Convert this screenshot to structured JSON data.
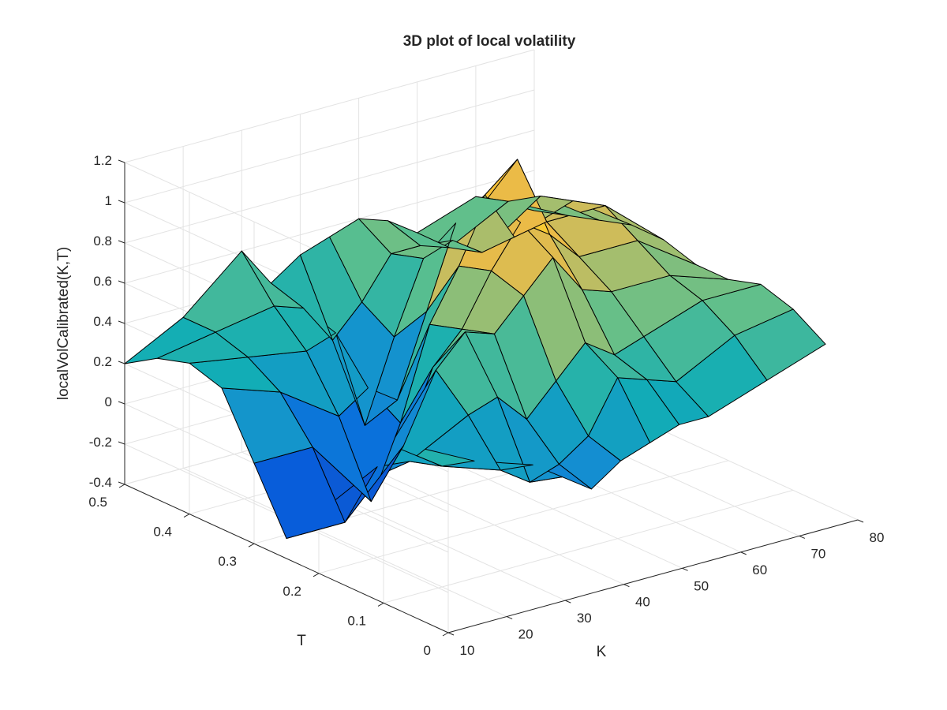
{
  "chart_data": {
    "type": "surface",
    "title": "3D plot of local volatility",
    "xlabel": "K",
    "ylabel": "T",
    "zlabel": "localVolCalibrated(K,T)",
    "xlim": [
      10,
      80
    ],
    "ylim": [
      0,
      0.5
    ],
    "zlim": [
      -0.4,
      1.2
    ],
    "x_ticks": [
      "10",
      "20",
      "30",
      "40",
      "50",
      "60",
      "70",
      "80"
    ],
    "y_ticks": [
      "0",
      "0.1",
      "0.2",
      "0.3",
      "0.4",
      "0.5"
    ],
    "z_ticks": [
      "-0.4",
      "-0.2",
      "0",
      "0.2",
      "0.4",
      "0.6",
      "0.8",
      "1",
      "1.2"
    ],
    "grid": true,
    "colormap": "parula",
    "K": [
      10,
      20,
      30,
      35,
      40,
      45,
      50,
      55,
      60,
      70,
      80
    ],
    "T": [
      0.05,
      0.1,
      0.15,
      0.2,
      0.25,
      0.3,
      0.35,
      0.4,
      0.45,
      0.5
    ],
    "Z": [
      [
        0.45,
        0.4,
        0.1,
        -0.1,
        -0.3,
        0.0,
        0.3,
        0.35,
        0.3,
        0.2
      ],
      [
        0.3,
        0.2,
        0.15,
        0.05,
        -0.3,
        0.0,
        0.2,
        0.3,
        0.35,
        0.35
      ],
      [
        0.2,
        0.1,
        0.3,
        0.45,
        0.0,
        -0.35,
        0.0,
        0.25,
        0.4,
        0.6
      ],
      [
        0.1,
        0.0,
        0.35,
        0.6,
        0.35,
        0.0,
        0.1,
        0.3,
        0.35,
        0.4
      ],
      [
        0.0,
        0.05,
        0.2,
        0.55,
        0.5,
        0.45,
        0.0,
        -0.2,
        0.15,
        0.5
      ],
      [
        0.1,
        0.15,
        0.35,
        0.7,
        0.75,
        0.7,
        0.4,
        0.2,
        0.3,
        0.55
      ],
      [
        0.15,
        0.4,
        0.5,
        0.85,
        0.95,
        1.0,
        0.8,
        0.55,
        0.5,
        0.6
      ],
      [
        0.2,
        0.35,
        0.4,
        0.65,
        0.85,
        1.15,
        0.9,
        0.6,
        0.5,
        0.55
      ],
      [
        0.2,
        0.3,
        0.45,
        0.6,
        0.7,
        0.8,
        0.65,
        0.5,
        0.45,
        0.45
      ],
      [
        0.3,
        0.45,
        0.55,
        0.6,
        0.7,
        0.8,
        0.75,
        0.7,
        0.6,
        0.55
      ],
      [
        0.4,
        0.5,
        0.55,
        0.5,
        0.5,
        0.55,
        0.55,
        0.5,
        0.45,
        0.4
      ]
    ]
  }
}
